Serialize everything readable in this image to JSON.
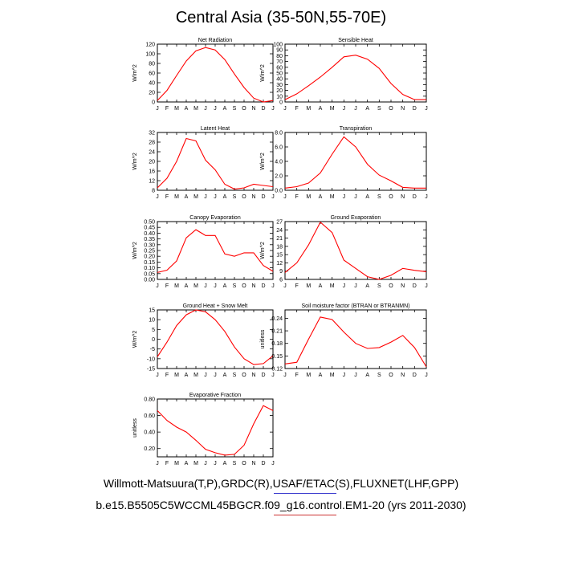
{
  "page": {
    "title": "Central Asia (35-50N,55-70E)",
    "footer_line1": "Willmott-Matsuura(T,P),GRDC(R),USAF/ETAC(S),FLUXNET(LHF,GPP)",
    "footer_line2": "b.e15.B5505C5WCCML45BGCR.f09_g16.control.EM1-20 (yrs 2011-2030)",
    "mark_colors": [
      "#3333cc",
      "#cc3333"
    ]
  },
  "chart_data": [
    {
      "type": "line",
      "title": "Net Radiation",
      "ylabel": "W/m^2",
      "categories": [
        "J",
        "F",
        "M",
        "A",
        "M",
        "J",
        "J",
        "A",
        "S",
        "O",
        "N",
        "D",
        "J"
      ],
      "values": [
        3,
        24,
        55,
        85,
        106,
        113,
        108,
        88,
        58,
        30,
        8,
        0,
        3
      ],
      "ylim": [
        0,
        120
      ],
      "yticks": [
        0,
        20,
        40,
        60,
        80,
        100,
        120
      ],
      "ytick_labels": [
        "0",
        "20",
        "40",
        "60",
        "80",
        "100",
        "120"
      ],
      "line_color": "#ff0000"
    },
    {
      "type": "line",
      "title": "Sensible Heat",
      "ylabel": "W/m^2",
      "categories": [
        "J",
        "F",
        "M",
        "A",
        "M",
        "J",
        "J",
        "A",
        "S",
        "O",
        "N",
        "D",
        "J"
      ],
      "values": [
        4,
        14,
        28,
        43,
        60,
        78,
        81,
        74,
        58,
        32,
        13,
        4,
        4
      ],
      "ylim": [
        0,
        100
      ],
      "yticks": [
        0,
        10,
        20,
        30,
        40,
        50,
        60,
        70,
        80,
        90,
        100
      ],
      "ytick_labels": [
        "0",
        "10",
        "20",
        "30",
        "40",
        "50",
        "60",
        "70",
        "80",
        "90",
        "100"
      ],
      "line_color": "#ff0000"
    },
    {
      "type": "line",
      "title": "Latent Heat",
      "ylabel": "W/m^2",
      "categories": [
        "J",
        "F",
        "M",
        "A",
        "M",
        "J",
        "J",
        "A",
        "S",
        "O",
        "N",
        "D",
        "J"
      ],
      "values": [
        9,
        13,
        20,
        29.5,
        28.5,
        20.5,
        16.5,
        10.5,
        8.5,
        9,
        10.5,
        10,
        9.5
      ],
      "ylim": [
        8,
        32
      ],
      "yticks": [
        8,
        12,
        16,
        20,
        24,
        28,
        32
      ],
      "ytick_labels": [
        "8",
        "12",
        "16",
        "20",
        "24",
        "28",
        "32"
      ],
      "line_color": "#ff0000"
    },
    {
      "type": "line",
      "title": "Transpiration",
      "ylabel": "W/m^2",
      "categories": [
        "J",
        "F",
        "M",
        "A",
        "M",
        "J",
        "J",
        "A",
        "S",
        "O",
        "N",
        "D",
        "J"
      ],
      "values": [
        0.3,
        0.5,
        1.0,
        2.4,
        5.0,
        7.4,
        6.0,
        3.6,
        2.1,
        1.3,
        0.4,
        0.3,
        0.3
      ],
      "ylim": [
        0,
        8
      ],
      "yticks": [
        0,
        2,
        4,
        6,
        8
      ],
      "ytick_labels": [
        "0.0",
        "2.0",
        "4.0",
        "6.0",
        "8.0"
      ],
      "line_color": "#ff0000"
    },
    {
      "type": "line",
      "title": "Canopy Evaporation",
      "ylabel": "W/m^2",
      "categories": [
        "J",
        "F",
        "M",
        "A",
        "M",
        "J",
        "J",
        "A",
        "S",
        "O",
        "N",
        "D",
        "J"
      ],
      "values": [
        0.06,
        0.08,
        0.16,
        0.36,
        0.43,
        0.38,
        0.38,
        0.22,
        0.2,
        0.23,
        0.23,
        0.12,
        0.07
      ],
      "ylim": [
        0,
        0.5
      ],
      "yticks": [
        0,
        0.05,
        0.1,
        0.15,
        0.2,
        0.25,
        0.3,
        0.35,
        0.4,
        0.45,
        0.5
      ],
      "ytick_labels": [
        "0.00",
        "0.05",
        "0.10",
        "0.15",
        "0.20",
        "0.25",
        "0.30",
        "0.35",
        "0.40",
        "0.45",
        "0.50"
      ],
      "line_color": "#ff0000"
    },
    {
      "type": "line",
      "title": "Ground Evaporation",
      "ylabel": "W/m^2",
      "categories": [
        "J",
        "F",
        "M",
        "A",
        "M",
        "J",
        "J",
        "A",
        "S",
        "O",
        "N",
        "D",
        "J"
      ],
      "values": [
        8.5,
        12,
        18.5,
        26.8,
        23,
        13,
        10,
        7,
        6,
        7.5,
        10,
        9.3,
        8.8
      ],
      "ylim": [
        6,
        27
      ],
      "yticks": [
        6,
        9,
        12,
        15,
        18,
        21,
        24,
        27
      ],
      "ytick_labels": [
        "6",
        "9",
        "12",
        "15",
        "18",
        "21",
        "24",
        "27"
      ],
      "line_color": "#ff0000"
    },
    {
      "type": "line",
      "title": "Ground Heat + Snow Melt",
      "ylabel": "W/m^2",
      "categories": [
        "J",
        "F",
        "M",
        "A",
        "M",
        "J",
        "J",
        "A",
        "S",
        "O",
        "N",
        "D",
        "J"
      ],
      "values": [
        -9,
        -1.5,
        7,
        12.5,
        15,
        14,
        10,
        4,
        -4,
        -10,
        -13,
        -12.5,
        -8.5
      ],
      "ylim": [
        -15,
        15
      ],
      "yticks": [
        -15,
        -10,
        -5,
        0,
        5,
        10,
        15
      ],
      "ytick_labels": [
        "-15",
        "-10",
        "-5",
        "0",
        "5",
        "10",
        "15"
      ],
      "line_color": "#ff0000"
    },
    {
      "type": "line",
      "title": "Soil moisture factor (BTRAN or BTRANMN)",
      "ylabel": "unitless",
      "categories": [
        "J",
        "F",
        "M",
        "A",
        "M",
        "J",
        "J",
        "A",
        "S",
        "O",
        "N",
        "D",
        "J"
      ],
      "values": [
        0.131,
        0.135,
        0.19,
        0.243,
        0.237,
        0.207,
        0.18,
        0.168,
        0.17,
        0.183,
        0.199,
        0.17,
        0.124
      ],
      "ylim": [
        0.12,
        0.26
      ],
      "yticks": [
        0.12,
        0.15,
        0.18,
        0.21,
        0.24
      ],
      "ytick_labels": [
        "0.12",
        "0.15",
        "0.18",
        "0.21",
        "0.24"
      ],
      "line_color": "#ff0000"
    },
    {
      "type": "line",
      "title": "Evaporative Fraction",
      "ylabel": "unitless",
      "categories": [
        "J",
        "F",
        "M",
        "A",
        "M",
        "J",
        "J",
        "A",
        "S",
        "O",
        "N",
        "D",
        "J"
      ],
      "values": [
        0.66,
        0.54,
        0.46,
        0.4,
        0.3,
        0.19,
        0.15,
        0.12,
        0.13,
        0.24,
        0.5,
        0.72,
        0.66
      ],
      "ylim": [
        0.1,
        0.8
      ],
      "yticks": [
        0.2,
        0.4,
        0.6,
        0.8
      ],
      "ytick_labels": [
        "0.20",
        "0.40",
        "0.60",
        "0.80"
      ],
      "line_color": "#ff0000"
    }
  ]
}
